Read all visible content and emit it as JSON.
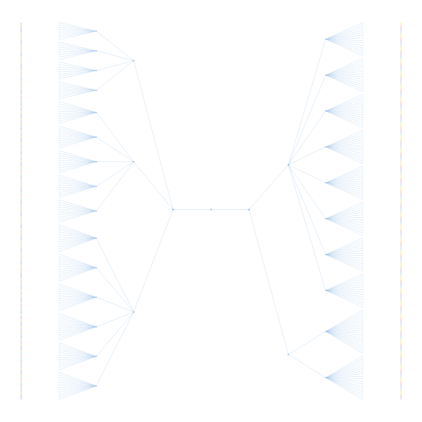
{
  "diagram": {
    "type": "dendrogram",
    "layout": "mirrored-horizontal",
    "labels_visible": false,
    "colors": {
      "link": "#9fc3ea",
      "hub": "#7aa7d8",
      "background": "#ffffff",
      "left_leaf_strip": [
        "#f2b6c6",
        "#f7d08a",
        "#9fd6e6",
        "#b9b9e8",
        "#c9e7a6"
      ],
      "right_leaf_strip": [
        "#f6f08a",
        "#f7c59f",
        "#d7b9e8",
        "#b9d9f3",
        "#e8e7a9"
      ]
    },
    "left_tree": {
      "root": "left-hub",
      "groups": [
        {
          "id": "L1",
          "clusters": 4,
          "leaves_per_cluster": 8
        },
        {
          "id": "L2",
          "clusters": 5,
          "leaves_per_cluster": 10
        },
        {
          "id": "L3",
          "clusters": 6,
          "leaves_per_cluster": 12
        }
      ]
    },
    "right_tree": {
      "root": "right-hub",
      "groups": [
        {
          "id": "R1",
          "clusters": 8,
          "leaves_per_cluster": 14
        },
        {
          "id": "R2",
          "clusters": 2,
          "leaves_per_cluster": 18
        }
      ]
    }
  }
}
